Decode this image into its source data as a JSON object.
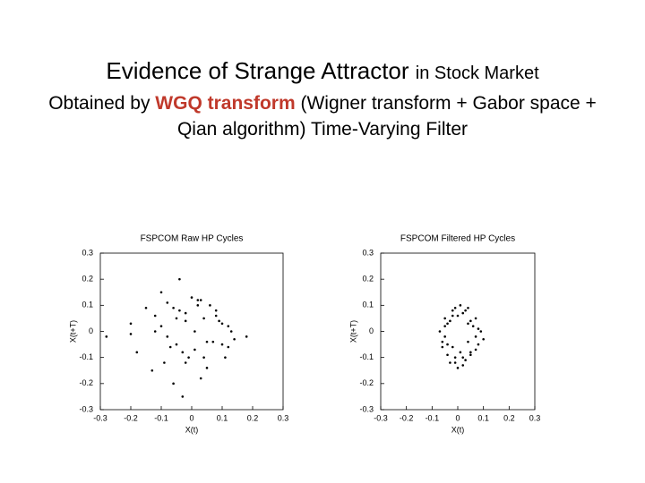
{
  "header": {
    "title": "Evidence of Strange Attractor",
    "title_suffix": "in Stock Market",
    "subtitle_before": "Obtained by",
    "subtitle_highlight": "WGQ transform",
    "subtitle_after": "(Wigner transform + Gabor space + Qian algorithm) Time-Varying Filter"
  },
  "chart_data": [
    {
      "type": "scatter",
      "title": "FSPCOM Raw HP Cycles",
      "xlabel": "X(t)",
      "ylabel": "X(t+T)",
      "xlim": [
        -0.3,
        0.3
      ],
      "ylim": [
        -0.3,
        0.3
      ],
      "xticks": [
        -0.3,
        -0.2,
        -0.1,
        0,
        0.1,
        0.2,
        0.3
      ],
      "yticks": [
        -0.3,
        -0.2,
        -0.1,
        0,
        0.1,
        0.2,
        0.3
      ],
      "series": [
        {
          "color": "#000000",
          "x": [
            -0.28,
            -0.2,
            -0.12,
            -0.05,
            0.02,
            0.08,
            0.12,
            0.1,
            0.04,
            -0.03,
            -0.08,
            -0.12,
            -0.1,
            -0.04,
            0.03,
            0.09,
            0.14,
            0.11,
            0.05,
            -0.02,
            -0.07,
            -0.1,
            -0.06,
            0,
            0.06,
            0.1,
            0.07,
            0.01,
            -0.05,
            -0.09,
            -0.13,
            -0.18,
            -0.2,
            -0.15,
            -0.08,
            -0.02,
            0.04,
            0.13,
            0.18,
            0.12,
            0.03,
            -0.03,
            -0.06,
            -0.01,
            0.05,
            0.08,
            0.02,
            -0.04,
            -0.02,
            0.01
          ],
          "values": [
            -0.02,
            -0.01,
            0,
            0.05,
            0.1,
            0.08,
            0.02,
            -0.05,
            -0.1,
            -0.08,
            -0.02,
            0.06,
            0.15,
            0.2,
            0.12,
            0.04,
            -0.03,
            -0.1,
            -0.14,
            -0.12,
            -0.06,
            0.02,
            0.09,
            0.13,
            0.1,
            0.03,
            -0.04,
            -0.07,
            -0.05,
            -0.12,
            -0.15,
            -0.08,
            0.03,
            0.09,
            0.11,
            0.07,
            0.05,
            0,
            -0.02,
            -0.06,
            -0.18,
            -0.25,
            -0.2,
            -0.1,
            -0.04,
            0.06,
            0.12,
            0.08,
            0.04,
            0
          ]
        }
      ]
    },
    {
      "type": "scatter",
      "title": "FSPCOM Filtered HP Cycles",
      "xlabel": "X(t)",
      "ylabel": "X(t+T)",
      "xlim": [
        -0.3,
        0.3
      ],
      "ylim": [
        -0.3,
        0.3
      ],
      "xticks": [
        -0.3,
        -0.2,
        -0.1,
        0,
        0.1,
        0.2,
        0.3
      ],
      "yticks": [
        -0.3,
        -0.2,
        -0.1,
        0,
        0.1,
        0.2,
        0.3
      ],
      "series": [
        {
          "color": "#000000",
          "x": [
            -0.07,
            -0.05,
            -0.02,
            0.01,
            0.04,
            0.07,
            0.09,
            0.08,
            0.05,
            0.02,
            -0.01,
            -0.04,
            -0.06,
            -0.05,
            -0.02,
            0.02,
            0.05,
            0.08,
            0.1,
            0.07,
            0.03,
            0,
            -0.03,
            -0.06,
            -0.04,
            -0.01,
            0.03,
            0.06,
            0.04,
            0.01,
            -0.02,
            -0.05,
            -0.03,
            0,
            0.04,
            0.07,
            0.05,
            0.02,
            -0.01,
            -0.04
          ],
          "values": [
            0,
            0.05,
            0.08,
            0.1,
            0.09,
            0.05,
            0,
            -0.05,
            -0.08,
            -0.1,
            -0.12,
            -0.09,
            -0.04,
            0.02,
            0.06,
            0.07,
            0.04,
            0.01,
            -0.03,
            -0.07,
            -0.11,
            -0.14,
            -0.12,
            -0.06,
            0.03,
            0.09,
            0.08,
            0.02,
            -0.04,
            -0.08,
            -0.06,
            -0.02,
            0.04,
            0.06,
            0.03,
            -0.02,
            -0.09,
            -0.13,
            -0.1,
            -0.05
          ]
        }
      ]
    }
  ]
}
